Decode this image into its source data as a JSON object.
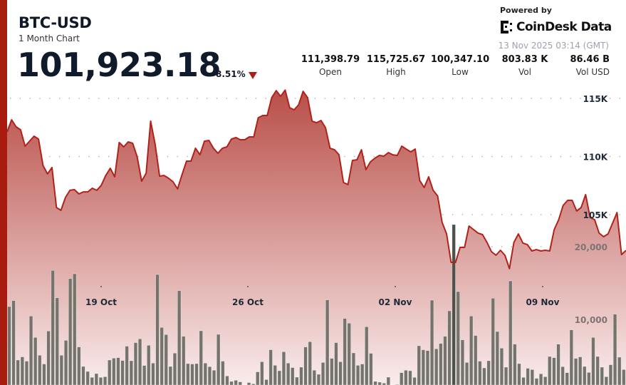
{
  "header": {
    "symbol": "BTC-USD",
    "subtitle": "1 Month Chart",
    "price": "101,923.18",
    "change": "-8.51%",
    "change_direction": "down",
    "powered_by": "Powered by",
    "brand": "CoinDesk Data",
    "timestamp": "13 Nov 2025 03:14 (GMT)"
  },
  "stats": [
    {
      "value": "111,398.79",
      "label": "Open"
    },
    {
      "value": "115,725.67",
      "label": "High"
    },
    {
      "value": "100,347.10",
      "label": "Low"
    },
    {
      "value": "803.83 K",
      "label": "Vol"
    },
    {
      "value": "86.46 B",
      "label": "Vol USD"
    }
  ],
  "colors": {
    "accent": "#a81c10",
    "line": "#b0221a",
    "volume_bar": "#74746c",
    "area_top": "#b84c46",
    "area_bottom": "#f9ecec"
  },
  "chart_data": [
    {
      "type": "area",
      "series": [
        {
          "values": [
            112120,
            113160,
            112550,
            112300,
            110890,
            111320,
            111750,
            111500,
            109230,
            108500,
            109050,
            105610,
            105370,
            106470,
            107090,
            107150,
            106780,
            106960,
            106960,
            107270,
            107090,
            107520,
            108370,
            108990,
            108250,
            111200,
            110830,
            111260,
            111140,
            109970,
            107880,
            108560,
            113040,
            111070,
            108310,
            108370,
            108130,
            107820,
            107210,
            108440,
            109600,
            109600,
            110710,
            110150,
            111320,
            111380,
            110710,
            110280,
            110710,
            110830,
            111500,
            111630,
            111440,
            111440,
            111690,
            111690,
            113340,
            113530,
            113530,
            115060,
            115670,
            115180,
            115720,
            114200,
            114020,
            114450,
            115610,
            115060,
            113040,
            112910,
            113100,
            112480,
            110710,
            110580,
            110150,
            107760,
            107580,
            109660,
            109720,
            110580,
            108870,
            109540,
            109850,
            110090,
            110030,
            110340,
            110150,
            110090,
            110890,
            110640,
            110400,
            110640,
            107940,
            107330,
            108250,
            107090,
            106600,
            104330,
            103340,
            100890,
            100890,
            102180,
            102180,
            104020,
            103710,
            103410,
            103280,
            102610,
            101810,
            101500,
            101930,
            101500,
            100350,
            102610,
            103340,
            102550,
            102420,
            101870,
            101990,
            101870,
            101930,
            101870,
            103710,
            104570,
            105800,
            106230,
            106230,
            105310,
            105610,
            106720,
            104750,
            104570,
            103410,
            103100,
            103340,
            104260,
            105180,
            101560,
            101920
          ]
        }
      ],
      "x_ticks": [
        "19 Oct",
        "26 Oct",
        "02 Nov",
        "09 Nov"
      ],
      "y_ticks": [
        "115K",
        "110K",
        "105K"
      ],
      "y_tick_values": [
        115000,
        110000,
        105000
      ],
      "axis": "right",
      "grid": true
    },
    {
      "type": "bar",
      "series": [
        {
          "values": [
            11760,
            12580,
            4410,
            4840,
            4250,
            10460,
            7520,
            5070,
            3860,
            8400,
            16730,
            12970,
            5070,
            7120,
            15620,
            16270,
            6210,
            3530,
            2840,
            2030,
            2550,
            2030,
            2120,
            4410,
            4670,
            4740,
            4350,
            6310,
            4310,
            6800,
            7320,
            3660,
            6440,
            3990,
            16180,
            8890,
            7910,
            3530,
            5360,
            13950,
            7680,
            3920,
            3860,
            3920,
            8430,
            3990,
            3500,
            3010,
            7940,
            4250,
            2220,
            1470,
            1630,
            1400,
            980,
            1310,
            1140,
            2780,
            4180,
            1730,
            5820,
            3690,
            2940,
            5550,
            3990,
            3370,
            2060,
            3430,
            6210,
            6930,
            3010,
            2450,
            4080,
            12680,
            4640,
            6800,
            4180,
            10130,
            9480,
            5390,
            3690,
            3860,
            8990,
            5330,
            1470,
            1370,
            1240,
            2060,
            980,
            1050,
            2680,
            3010,
            2940,
            2030,
            6370,
            5820,
            5720,
            12650,
            5950,
            6700,
            7680,
            11180,
            23040,
            13820,
            7190,
            4080,
            10460,
            7780,
            4250,
            3330,
            4310,
            12910,
            8330,
            6050,
            3430,
            15290,
            6600,
            3920,
            2030,
            3270,
            3100,
            1890,
            2520,
            2120,
            4900,
            4740,
            6600,
            3500,
            2680,
            8560,
            4640,
            4840,
            3530,
            2710,
            7520,
            4900,
            3430,
            2120,
            3760,
            10720,
            4800,
            3100
          ]
        }
      ],
      "y_ticks": [
        "20,000",
        "10,000"
      ],
      "y_tick_values": [
        20000,
        10000
      ],
      "axis": "right",
      "grid": true
    }
  ]
}
